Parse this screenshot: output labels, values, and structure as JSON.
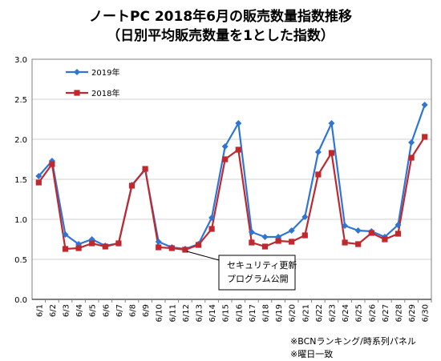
{
  "title": "ノートPC 2018年6月の販売数量指数推移",
  "subtitle": "（日別平均販売数量を1とした指数）",
  "notes": [
    "※BCNランキング/時系列パネル",
    "※曜日一致"
  ],
  "callout": [
    "セキュリティ更新",
    "プログラム公開"
  ],
  "colors": {
    "s2019": "#2e75d6",
    "s2018": "#c0282e",
    "grid": "#d0d0d0",
    "axis": "#808080"
  },
  "chart_data": {
    "type": "line",
    "title": "ノートPC 2018年6月の販売数量指数推移",
    "subtitle": "（日別平均販売数量を1とした指数）",
    "xlabel": "",
    "ylabel": "",
    "ylim": [
      0,
      3.0
    ],
    "yticks": [
      "0.0",
      "0.5",
      "1.0",
      "1.5",
      "2.0",
      "2.5",
      "3.0"
    ],
    "grid": true,
    "legend": "top-left",
    "categories": [
      "6/1",
      "6/2",
      "6/3",
      "6/4",
      "6/5",
      "6/6",
      "6/7",
      "6/8",
      "6/9",
      "6/10",
      "6/11",
      "6/12",
      "6/13",
      "6/14",
      "6/15",
      "6/16",
      "6/17",
      "6/18",
      "6/19",
      "6/20",
      "6/21",
      "6/22",
      "6/23",
      "6/24",
      "6/25",
      "6/26",
      "6/27",
      "6/28",
      "6/29",
      "6/30"
    ],
    "series": [
      {
        "name": "2019年",
        "marker": "diamond",
        "color": "#2e75d6",
        "values": [
          1.54,
          1.73,
          0.81,
          0.69,
          0.75,
          0.67,
          0.7,
          1.43,
          1.62,
          0.72,
          0.65,
          0.63,
          0.69,
          1.02,
          1.91,
          2.2,
          0.84,
          0.78,
          0.78,
          0.86,
          1.03,
          1.84,
          2.2,
          0.92,
          0.86,
          0.85,
          0.78,
          0.93,
          1.96,
          2.43
        ]
      },
      {
        "name": "2018年",
        "marker": "square",
        "color": "#c0282e",
        "values": [
          1.46,
          1.69,
          0.63,
          0.64,
          0.7,
          0.66,
          0.7,
          1.42,
          1.63,
          0.65,
          0.64,
          0.62,
          0.68,
          0.88,
          1.75,
          1.87,
          0.71,
          0.66,
          0.73,
          0.72,
          0.8,
          1.56,
          1.83,
          0.71,
          0.69,
          0.83,
          0.75,
          0.82,
          1.77,
          2.03
        ]
      }
    ],
    "annotation": {
      "text": [
        "セキュリティ更新",
        "プログラム公開"
      ],
      "points_to": "6/12"
    }
  }
}
